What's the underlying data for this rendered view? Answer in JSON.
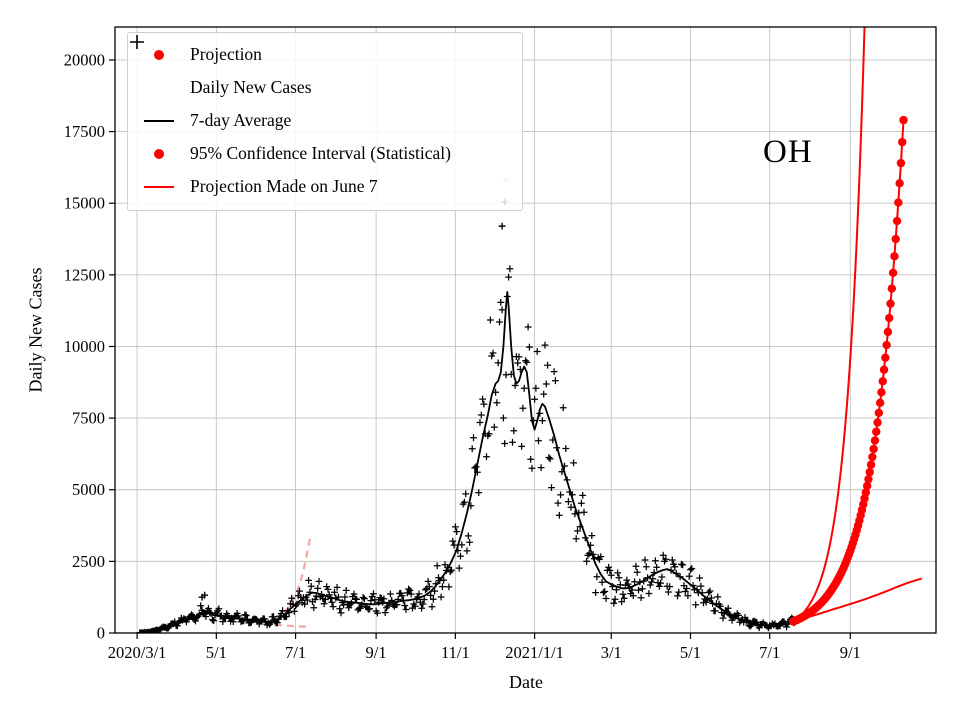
{
  "axes": {
    "xlabel": "Date",
    "ylabel": "Daily New Cases"
  },
  "annotation": {
    "text": "OH"
  },
  "legend": {
    "items": [
      {
        "label": "Projection",
        "marker": "red-dot",
        "color": "#ff0000"
      },
      {
        "label": "Daily New Cases",
        "marker": "black-plus",
        "color": "#000000"
      },
      {
        "label": "7-day Average",
        "marker": "black-line",
        "color": "#000000"
      },
      {
        "label": "95% Confidence Interval (Statistical)",
        "marker": "red-dot",
        "color": "#ff0000"
      },
      {
        "label": "Projection Made on June 7",
        "marker": "red-line",
        "color": "#ff0000"
      }
    ]
  },
  "chart_data": {
    "type": "line",
    "title": "",
    "xlabel": "Date",
    "ylabel": "Daily New Cases",
    "x_unit": "days since 2020-03-01",
    "xlim": [
      -17,
      615
    ],
    "ylim": [
      0,
      21150
    ],
    "grid": true,
    "legend_position": "upper left",
    "x_ticks": [
      {
        "day": 0,
        "label": "2020/3/1"
      },
      {
        "day": 61,
        "label": "5/1"
      },
      {
        "day": 122,
        "label": "7/1"
      },
      {
        "day": 184,
        "label": "9/1"
      },
      {
        "day": 245,
        "label": "11/1"
      },
      {
        "day": 306,
        "label": "2021/1/1"
      },
      {
        "day": 365,
        "label": "3/1"
      },
      {
        "day": 426,
        "label": "5/1"
      },
      {
        "day": 487,
        "label": "7/1"
      },
      {
        "day": 549,
        "label": "9/1"
      }
    ],
    "y_ticks": [
      0,
      2500,
      5000,
      7500,
      10000,
      12500,
      15000,
      17500,
      20000
    ],
    "series": [
      {
        "name": "7-day Average",
        "kind": "line",
        "color": "#000000",
        "width": 1.8,
        "points": [
          [
            0,
            0
          ],
          [
            4,
            8
          ],
          [
            8,
            25
          ],
          [
            12,
            60
          ],
          [
            16,
            110
          ],
          [
            20,
            170
          ],
          [
            24,
            240
          ],
          [
            28,
            310
          ],
          [
            32,
            380
          ],
          [
            36,
            440
          ],
          [
            40,
            480
          ],
          [
            44,
            520
          ],
          [
            48,
            640
          ],
          [
            51,
            780
          ],
          [
            54,
            700
          ],
          [
            58,
            630
          ],
          [
            62,
            620
          ],
          [
            66,
            600
          ],
          [
            70,
            570
          ],
          [
            74,
            540
          ],
          [
            78,
            510
          ],
          [
            82,
            480
          ],
          [
            86,
            460
          ],
          [
            90,
            430
          ],
          [
            94,
            410
          ],
          [
            98,
            390
          ],
          [
            102,
            390
          ],
          [
            106,
            430
          ],
          [
            110,
            520
          ],
          [
            114,
            660
          ],
          [
            118,
            850
          ],
          [
            122,
            1000
          ],
          [
            126,
            1150
          ],
          [
            130,
            1280
          ],
          [
            134,
            1400
          ],
          [
            138,
            1400
          ],
          [
            142,
            1330
          ],
          [
            146,
            1280
          ],
          [
            150,
            1240
          ],
          [
            154,
            1170
          ],
          [
            158,
            1120
          ],
          [
            162,
            1090
          ],
          [
            166,
            1070
          ],
          [
            170,
            1050
          ],
          [
            174,
            1030
          ],
          [
            178,
            1010
          ],
          [
            182,
            1000
          ],
          [
            186,
            1020
          ],
          [
            190,
            1040
          ],
          [
            194,
            1070
          ],
          [
            198,
            1090
          ],
          [
            202,
            1110
          ],
          [
            206,
            1130
          ],
          [
            210,
            1150
          ],
          [
            214,
            1190
          ],
          [
            218,
            1240
          ],
          [
            222,
            1320
          ],
          [
            226,
            1450
          ],
          [
            230,
            1650
          ],
          [
            234,
            1900
          ],
          [
            238,
            2150
          ],
          [
            242,
            2500
          ],
          [
            246,
            2900
          ],
          [
            250,
            3500
          ],
          [
            254,
            4200
          ],
          [
            258,
            5000
          ],
          [
            262,
            5900
          ],
          [
            266,
            6800
          ],
          [
            270,
            7600
          ],
          [
            273,
            8300
          ],
          [
            276,
            8700
          ],
          [
            278,
            8800
          ],
          [
            280,
            9100
          ],
          [
            282,
            10000
          ],
          [
            284,
            11400
          ],
          [
            285,
            11900
          ],
          [
            286,
            11400
          ],
          [
            288,
            10000
          ],
          [
            290,
            9000
          ],
          [
            292,
            8700
          ],
          [
            294,
            8800
          ],
          [
            296,
            9100
          ],
          [
            298,
            9300
          ],
          [
            300,
            9100
          ],
          [
            302,
            8300
          ],
          [
            304,
            7400
          ],
          [
            306,
            7100
          ],
          [
            308,
            7400
          ],
          [
            310,
            7800
          ],
          [
            312,
            8000
          ],
          [
            314,
            7900
          ],
          [
            317,
            7500
          ],
          [
            321,
            6900
          ],
          [
            325,
            6200
          ],
          [
            329,
            5600
          ],
          [
            333,
            5000
          ],
          [
            337,
            4400
          ],
          [
            341,
            3900
          ],
          [
            345,
            3400
          ],
          [
            349,
            2900
          ],
          [
            353,
            2400
          ],
          [
            357,
            2050
          ],
          [
            361,
            1800
          ],
          [
            365,
            1700
          ],
          [
            369,
            1620
          ],
          [
            373,
            1560
          ],
          [
            377,
            1560
          ],
          [
            381,
            1620
          ],
          [
            385,
            1700
          ],
          [
            389,
            1800
          ],
          [
            393,
            1920
          ],
          [
            397,
            2040
          ],
          [
            401,
            2130
          ],
          [
            405,
            2200
          ],
          [
            408,
            2230
          ],
          [
            411,
            2180
          ],
          [
            415,
            2060
          ],
          [
            419,
            1940
          ],
          [
            423,
            1800
          ],
          [
            427,
            1650
          ],
          [
            431,
            1500
          ],
          [
            435,
            1340
          ],
          [
            439,
            1190
          ],
          [
            443,
            1050
          ],
          [
            447,
            920
          ],
          [
            451,
            800
          ],
          [
            455,
            690
          ],
          [
            459,
            590
          ],
          [
            463,
            500
          ],
          [
            467,
            430
          ],
          [
            471,
            370
          ],
          [
            475,
            330
          ],
          [
            479,
            300
          ],
          [
            483,
            280
          ],
          [
            487,
            265
          ],
          [
            491,
            260
          ],
          [
            495,
            275
          ],
          [
            499,
            320
          ],
          [
            503,
            390
          ],
          [
            506,
            430
          ]
        ]
      },
      {
        "name": "Daily New Cases",
        "kind": "scatter-plus",
        "color": "#000000",
        "derived_from": "7-day Average",
        "jitter_rel": 0.38,
        "weekly_amplitude": 0.22,
        "seed": 7,
        "day_range": [
          2,
          506
        ],
        "outliers": [
          [
            50,
            1250
          ],
          [
            52,
            1320
          ],
          [
            281,
            14200
          ],
          [
            283,
            15050
          ],
          [
            284,
            15800,
            "#b0b0b0"
          ]
        ]
      },
      {
        "name": "95% CI upper",
        "kind": "line",
        "color": "#ff0000",
        "width": 2,
        "interp": "log",
        "points": [
          [
            505,
            400
          ],
          [
            510,
            574
          ],
          [
            515,
            823
          ],
          [
            520,
            1181
          ],
          [
            525,
            1695
          ],
          [
            530,
            2432
          ],
          [
            535,
            3489
          ],
          [
            540,
            5006
          ],
          [
            545,
            7182
          ],
          [
            550,
            10304
          ],
          [
            555,
            14783
          ],
          [
            558,
            18352
          ],
          [
            561,
            22800
          ]
        ]
      },
      {
        "name": "95% CI lower",
        "kind": "line",
        "color": "#ff0000",
        "width": 2,
        "interp": "log",
        "points": [
          [
            505,
            400
          ],
          [
            513,
            505
          ],
          [
            521,
            615
          ],
          [
            529,
            730
          ],
          [
            537,
            845
          ],
          [
            545,
            955
          ],
          [
            553,
            1070
          ],
          [
            561,
            1190
          ],
          [
            569,
            1320
          ],
          [
            577,
            1460
          ],
          [
            585,
            1610
          ],
          [
            592,
            1730
          ],
          [
            598,
            1820
          ],
          [
            604,
            1900
          ]
        ]
      },
      {
        "name": "Projection Made on June 7",
        "kind": "line",
        "color": "#ff0000",
        "width": 2,
        "interp": "log",
        "points": [
          [
            505,
            400
          ],
          [
            510,
            500
          ],
          [
            515,
            626
          ],
          [
            520,
            783
          ],
          [
            525,
            979
          ],
          [
            530,
            1225
          ],
          [
            535,
            1532
          ],
          [
            540,
            1917
          ],
          [
            545,
            2398
          ],
          [
            550,
            3000
          ],
          [
            555,
            3752
          ],
          [
            560,
            4694
          ],
          [
            565,
            5872
          ],
          [
            570,
            7345
          ],
          [
            575,
            9188
          ],
          [
            580,
            11494
          ],
          [
            585,
            14378
          ],
          [
            590,
            17900
          ]
        ]
      },
      {
        "name": "Projection",
        "kind": "dots",
        "color": "#ff0000",
        "radius": 4.2,
        "step_days": 1,
        "interp": "log",
        "points": [
          [
            505,
            400
          ],
          [
            510,
            500
          ],
          [
            515,
            626
          ],
          [
            520,
            783
          ],
          [
            525,
            979
          ],
          [
            530,
            1225
          ],
          [
            535,
            1532
          ],
          [
            540,
            1917
          ],
          [
            545,
            2398
          ],
          [
            550,
            3000
          ],
          [
            555,
            3752
          ],
          [
            560,
            4694
          ],
          [
            565,
            5872
          ],
          [
            570,
            7345
          ],
          [
            575,
            9188
          ],
          [
            580,
            11494
          ],
          [
            585,
            14378
          ],
          [
            590,
            17900
          ]
        ]
      },
      {
        "name": "Old projection upper (faded)",
        "kind": "line",
        "color": "#f4a7a7",
        "width": 2.2,
        "dash": "7 5",
        "interp": "log",
        "points": [
          [
            97,
            330
          ],
          [
            103,
            420
          ],
          [
            109,
            560
          ],
          [
            114,
            760
          ],
          [
            119,
            1060
          ],
          [
            123,
            1450
          ],
          [
            127,
            2000
          ],
          [
            130,
            2600
          ],
          [
            133,
            3300
          ]
        ]
      },
      {
        "name": "Old projection lower (faded)",
        "kind": "line",
        "color": "#f4a7a7",
        "width": 2.2,
        "dash": "7 5",
        "points": [
          [
            97,
            330
          ],
          [
            103,
            300
          ],
          [
            109,
            275
          ],
          [
            115,
            255
          ],
          [
            121,
            240
          ],
          [
            127,
            225
          ],
          [
            133,
            215
          ]
        ]
      }
    ]
  }
}
